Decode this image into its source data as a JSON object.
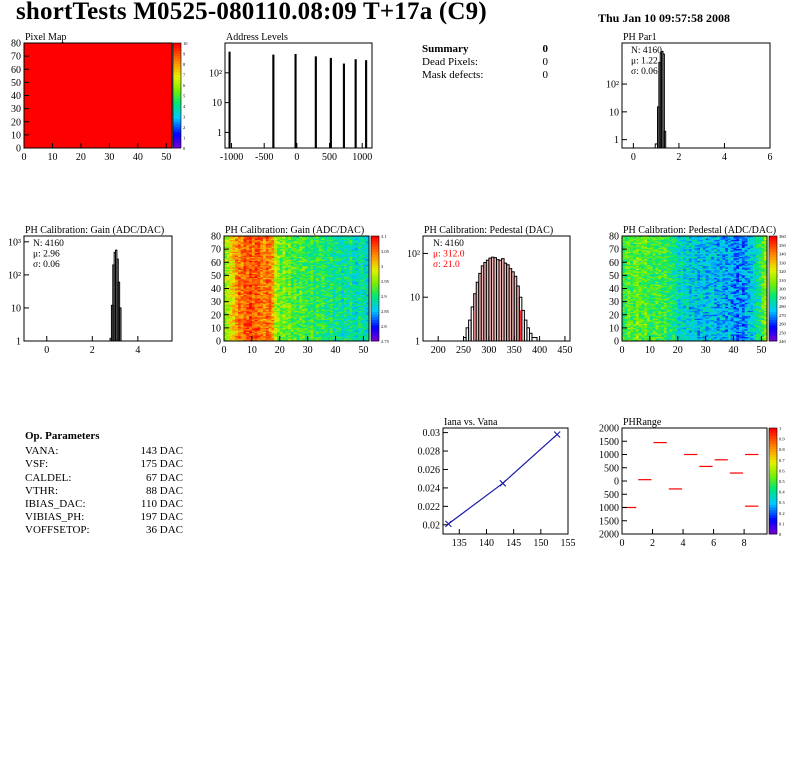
{
  "header": {
    "title": "shortTests M0525-080110.08:09 T+17a (C9)",
    "date": "Thu Jan 10 09:57:58 2008"
  },
  "summary": {
    "title": "Summary",
    "title_value": "0",
    "rows": [
      {
        "label": "Dead Pixels:",
        "value": "0"
      },
      {
        "label": "Mask defects:",
        "value": "0"
      }
    ]
  },
  "op_params": {
    "title": "Op. Parameters",
    "rows": [
      {
        "label": "VANA:",
        "value": "143 DAC"
      },
      {
        "label": "VSF:",
        "value": "175 DAC"
      },
      {
        "label": "CALDEL:",
        "value": "67 DAC"
      },
      {
        "label": "VTHR:",
        "value": "88 DAC"
      },
      {
        "label": "IBIAS_DAC:",
        "value": "110 DAC"
      },
      {
        "label": "VIBIAS_PH:",
        "value": "197 DAC"
      },
      {
        "label": "VOFFSETOP:",
        "value": "36 DAC"
      }
    ]
  },
  "colors": {
    "frame": "#000000",
    "line": "#000000",
    "red": "#ff0000",
    "blue": "#1a1aa6",
    "ped_fill": "#cc0000"
  },
  "chart_data": [
    {
      "id": "pixel_map",
      "type": "heatmap",
      "title": "Pixel Map",
      "xlim": [
        0,
        52
      ],
      "ylim": [
        0,
        80
      ],
      "xticks": [
        0,
        10,
        20,
        30,
        40,
        50
      ],
      "yticks": [
        0,
        10,
        20,
        30,
        40,
        50,
        60,
        70,
        80
      ],
      "fill": "#ff0000",
      "zlim": [
        0,
        10
      ],
      "zticks": [
        "10",
        "9",
        "8",
        "7",
        "6",
        "5",
        "4",
        "3",
        "2",
        "1",
        "0"
      ]
    },
    {
      "id": "address_levels",
      "type": "bar",
      "title": "Address Levels",
      "xlim": [
        -1100,
        1150
      ],
      "ylog": true,
      "ylim": [
        0.3,
        1000
      ],
      "xticks": [
        -1000,
        -500,
        0,
        500,
        1000
      ],
      "xticklabels": [
        "-1000",
        "-500",
        "0",
        "500",
        "1000"
      ],
      "yticks": [
        1,
        10,
        100
      ],
      "yticklabels": [
        "1",
        "10",
        "10²"
      ],
      "peaks": [
        {
          "x": -1030,
          "v": 500,
          "w": 25
        },
        {
          "x": -360,
          "v": 400,
          "w": 25
        },
        {
          "x": -20,
          "v": 420,
          "w": 25
        },
        {
          "x": 290,
          "v": 350,
          "w": 25
        },
        {
          "x": 520,
          "v": 310,
          "w": 25
        },
        {
          "x": 720,
          "v": 200,
          "w": 25
        },
        {
          "x": 900,
          "v": 280,
          "w": 25
        },
        {
          "x": 1060,
          "v": 260,
          "w": 25
        }
      ]
    },
    {
      "id": "ph_par1",
      "type": "bar",
      "title": "PH Par1",
      "xlim": [
        -0.5,
        6
      ],
      "ylog": true,
      "ylim": [
        0.5,
        3000
      ],
      "xticks": [
        0,
        2,
        4,
        6
      ],
      "yticks": [
        1,
        10,
        100
      ],
      "yticklabels": [
        "1",
        "10",
        "10²"
      ],
      "stats": [
        "N: 4160",
        "μ: 1.22",
        "σ: 0.06"
      ],
      "bins": [
        [
          0.96,
          1.06,
          0.7
        ],
        [
          1.06,
          1.12,
          15
        ],
        [
          1.12,
          1.18,
          600
        ],
        [
          1.18,
          1.24,
          1300
        ],
        [
          1.24,
          1.3,
          1500
        ],
        [
          1.3,
          1.36,
          1200
        ],
        [
          1.36,
          1.42,
          2
        ]
      ]
    },
    {
      "id": "gain_1d",
      "type": "bar",
      "title": "PH Calibration: Gain (ADC/DAC)",
      "xlim": [
        -1,
        5.5
      ],
      "ylog": true,
      "ylim": [
        1,
        1500
      ],
      "xticks": [
        0,
        2,
        4
      ],
      "yticks": [
        1,
        10,
        100,
        1000
      ],
      "yticklabels": [
        "1",
        "10",
        "10²",
        "10³"
      ],
      "stats": [
        "N: 4160",
        "μ: 2.96",
        "σ: 0.06"
      ],
      "bins": [
        [
          2.78,
          2.84,
          1.2
        ],
        [
          2.84,
          2.9,
          12
        ],
        [
          2.9,
          2.96,
          200
        ],
        [
          2.96,
          3.02,
          480
        ],
        [
          3.02,
          3.08,
          560
        ],
        [
          3.08,
          3.14,
          300
        ],
        [
          3.14,
          3.2,
          60
        ],
        [
          3.2,
          3.26,
          10
        ]
      ]
    },
    {
      "id": "gain_map",
      "type": "heatmap",
      "title": "PH Calibration: Gain (ADC/DAC)",
      "xlim": [
        0,
        52
      ],
      "ylim": [
        0,
        80
      ],
      "xticks": [
        0,
        10,
        20,
        30,
        40,
        50
      ],
      "yticks": [
        0,
        10,
        20,
        30,
        40,
        50,
        60,
        70,
        80
      ],
      "zticks": [
        "3.1",
        "3.05",
        "3",
        "2.95",
        "2.9",
        "2.85",
        "2.8",
        "2.75"
      ],
      "column_levels": [
        0.58,
        0.62,
        0.7,
        0.74,
        0.8,
        0.86,
        0.84,
        0.9,
        0.88,
        0.92,
        0.86,
        0.9,
        0.88,
        0.84,
        0.82,
        0.86,
        0.84,
        0.8,
        0.62,
        0.56,
        0.52,
        0.56,
        0.5,
        0.54,
        0.48,
        0.52,
        0.46,
        0.5,
        0.5,
        0.46,
        0.44,
        0.48,
        0.42,
        0.46,
        0.44,
        0.48,
        0.42,
        0.4,
        0.44,
        0.38,
        0.42,
        0.4,
        0.36,
        0.4,
        0.38,
        0.42,
        0.36,
        0.34,
        0.38,
        0.4,
        0.36,
        0.34
      ]
    },
    {
      "id": "pedestal_1d",
      "type": "bar",
      "title": "PH Calibration: Pedestal (DAC)",
      "xlim": [
        170,
        460
      ],
      "ylog": true,
      "ylim": [
        1,
        250
      ],
      "xticks": [
        200,
        250,
        300,
        350,
        400,
        450
      ],
      "yticks": [
        1,
        10,
        100
      ],
      "yticklabels": [
        "1",
        "10",
        "10²"
      ],
      "stats": [
        "N: 4160"
      ],
      "fit_stats": [
        "μ: 312.0",
        "σ: 21.0"
      ],
      "fit_range": [
        270,
        362
      ],
      "bins": [
        [
          250,
          255,
          1.2
        ],
        [
          255,
          260,
          2
        ],
        [
          260,
          265,
          3
        ],
        [
          265,
          270,
          6
        ],
        [
          270,
          275,
          12
        ],
        [
          275,
          280,
          22
        ],
        [
          280,
          285,
          35
        ],
        [
          285,
          290,
          52
        ],
        [
          290,
          295,
          62
        ],
        [
          295,
          300,
          70
        ],
        [
          300,
          305,
          78
        ],
        [
          305,
          310,
          82
        ],
        [
          310,
          315,
          80
        ],
        [
          315,
          320,
          72
        ],
        [
          320,
          325,
          70
        ],
        [
          325,
          330,
          76
        ],
        [
          330,
          335,
          60
        ],
        [
          335,
          340,
          55
        ],
        [
          340,
          345,
          45
        ],
        [
          345,
          350,
          38
        ],
        [
          350,
          355,
          30
        ],
        [
          355,
          360,
          18
        ],
        [
          360,
          365,
          10
        ],
        [
          365,
          370,
          5
        ],
        [
          370,
          375,
          3
        ],
        [
          375,
          380,
          2
        ],
        [
          380,
          385,
          1.5
        ],
        [
          385,
          395,
          1.2
        ]
      ]
    },
    {
      "id": "pedestal_map",
      "type": "heatmap",
      "title": "PH Calibration: Pedestal (ADC/DAC)",
      "xlim": [
        0,
        52
      ],
      "ylim": [
        0,
        80
      ],
      "xticks": [
        0,
        10,
        20,
        30,
        40,
        50
      ],
      "yticks": [
        0,
        10,
        20,
        30,
        40,
        50,
        60,
        70,
        80
      ],
      "zticks": [
        "360",
        "350",
        "340",
        "330",
        "320",
        "310",
        "300",
        "290",
        "280",
        "270",
        "260",
        "250",
        "240"
      ],
      "column_levels": [
        0.46,
        0.5,
        0.52,
        0.48,
        0.5,
        0.54,
        0.5,
        0.48,
        0.52,
        0.5,
        0.46,
        0.48,
        0.5,
        0.48,
        0.46,
        0.5,
        0.44,
        0.42,
        0.4,
        0.38,
        0.34,
        0.36,
        0.32,
        0.34,
        0.3,
        0.32,
        0.3,
        0.28,
        0.32,
        0.3,
        0.28,
        0.32,
        0.3,
        0.28,
        0.26,
        0.3,
        0.26,
        0.24,
        0.28,
        0.24,
        0.22,
        0.2,
        0.24,
        0.22,
        0.26,
        0.28,
        0.3,
        0.34,
        0.38,
        0.42,
        0.5,
        0.58
      ]
    },
    {
      "id": "iana_vana",
      "type": "line",
      "title": "Iana vs. Vana",
      "xlim": [
        132,
        155
      ],
      "ylim": [
        0.019,
        0.0305
      ],
      "xticks": [
        135,
        140,
        145,
        150,
        155
      ],
      "yticks": [
        0.02,
        0.022,
        0.024,
        0.026,
        0.028,
        0.03
      ],
      "yticklabels": [
        "0.02",
        "0.022",
        "0.024",
        "0.026",
        "0.028",
        "0.03"
      ],
      "x": [
        133,
        143,
        153
      ],
      "y": [
        0.0201,
        0.0245,
        0.0298
      ]
    },
    {
      "id": "ph_range",
      "type": "scatter",
      "title": "PHRange",
      "xlim": [
        0,
        9.5
      ],
      "ylim": [
        -2000,
        2000
      ],
      "xticks": [
        0,
        2,
        4,
        6,
        8
      ],
      "yticks": [
        2000,
        1500,
        1000,
        500,
        0,
        -500,
        -1000,
        -1500,
        -2000
      ],
      "yticklabels": [
        "2000",
        "1500",
        "1000",
        "500",
        "0",
        "500",
        "1000",
        "1500",
        "2000"
      ],
      "zticks": [
        "1",
        "0.9",
        "0.8",
        "0.7",
        "0.6",
        "0.5",
        "0.4",
        "0.3",
        "0.2",
        "0.1",
        "0"
      ],
      "segments": [
        [
          0,
          1,
          -1000
        ],
        [
          1,
          2,
          50
        ],
        [
          2,
          3,
          1450
        ],
        [
          3,
          4,
          -300
        ],
        [
          4,
          5,
          1000
        ],
        [
          5,
          6,
          550
        ],
        [
          6,
          7,
          800
        ],
        [
          7,
          8,
          300
        ],
        [
          8,
          9,
          1000
        ],
        [
          8,
          9,
          -950
        ]
      ]
    }
  ]
}
